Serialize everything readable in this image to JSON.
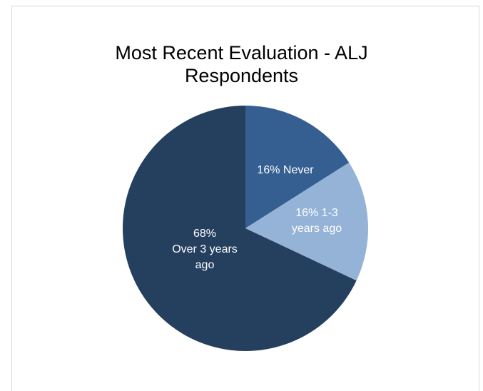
{
  "chart_data": {
    "type": "pie",
    "title_lines": [
      "Most Recent Evaluation - ALJ",
      "Respondents"
    ],
    "slices": [
      {
        "label_lines": [
          "16% Never"
        ],
        "value": 16,
        "color": "#355f91"
      },
      {
        "label_lines": [
          "16% 1-3",
          "years ago"
        ],
        "value": 16,
        "color": "#95b3d7"
      },
      {
        "label_lines": [
          "68%",
          "Over 3 years",
          "ago"
        ],
        "value": 68,
        "color": "#253f5f"
      }
    ],
    "start_angle_deg": 0,
    "direction": "clockwise",
    "legend": "none"
  }
}
